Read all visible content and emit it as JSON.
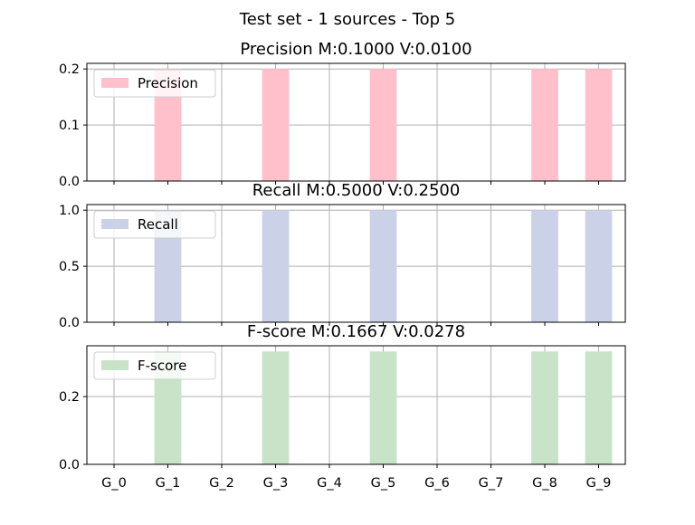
{
  "figure": {
    "suptitle": "Test set - 1 sources - Top 5"
  },
  "chart_data": [
    {
      "type": "bar",
      "title": "Precision M:0.1000 V:0.0100",
      "categories": [
        "G_0",
        "G_1",
        "G_2",
        "G_3",
        "G_4",
        "G_5",
        "G_6",
        "G_7",
        "G_8",
        "G_9"
      ],
      "series": [
        {
          "name": "Precision",
          "values": [
            0,
            0.2,
            0,
            0.2,
            0,
            0.2,
            0,
            0,
            0.2,
            0.2
          ],
          "color": "#ffc0cb"
        }
      ],
      "ylim": [
        0,
        0.21
      ],
      "yticks": [
        0.0,
        0.1,
        0.2
      ],
      "ytick_labels": [
        "0.0",
        "0.1",
        "0.2"
      ],
      "grid": true,
      "legend": "upper-left",
      "xtick_labels_shown": false
    },
    {
      "type": "bar",
      "title": "Recall M:0.5000 V:0.2500",
      "categories": [
        "G_0",
        "G_1",
        "G_2",
        "G_3",
        "G_4",
        "G_5",
        "G_6",
        "G_7",
        "G_8",
        "G_9"
      ],
      "series": [
        {
          "name": "Recall",
          "values": [
            0,
            1.0,
            0,
            1.0,
            0,
            1.0,
            0,
            0,
            1.0,
            1.0
          ],
          "color": "#cbd1e6"
        }
      ],
      "ylim": [
        0,
        1.05
      ],
      "yticks": [
        0.0,
        0.5,
        1.0
      ],
      "ytick_labels": [
        "0.0",
        "0.5",
        "1.0"
      ],
      "grid": true,
      "legend": "upper-left",
      "xtick_labels_shown": false
    },
    {
      "type": "bar",
      "title": "F-score M:0.1667 V:0.0278",
      "categories": [
        "G_0",
        "G_1",
        "G_2",
        "G_3",
        "G_4",
        "G_5",
        "G_6",
        "G_7",
        "G_8",
        "G_9"
      ],
      "series": [
        {
          "name": "F-score",
          "values": [
            0,
            0.3333,
            0,
            0.3333,
            0,
            0.3333,
            0,
            0,
            0.3333,
            0.3333
          ],
          "color": "#c8e3c8"
        }
      ],
      "ylim": [
        0,
        0.35
      ],
      "yticks": [
        0.0,
        0.2
      ],
      "ytick_labels": [
        "0.0",
        "0.2"
      ],
      "grid": true,
      "legend": "upper-left",
      "xtick_labels_shown": true
    }
  ]
}
